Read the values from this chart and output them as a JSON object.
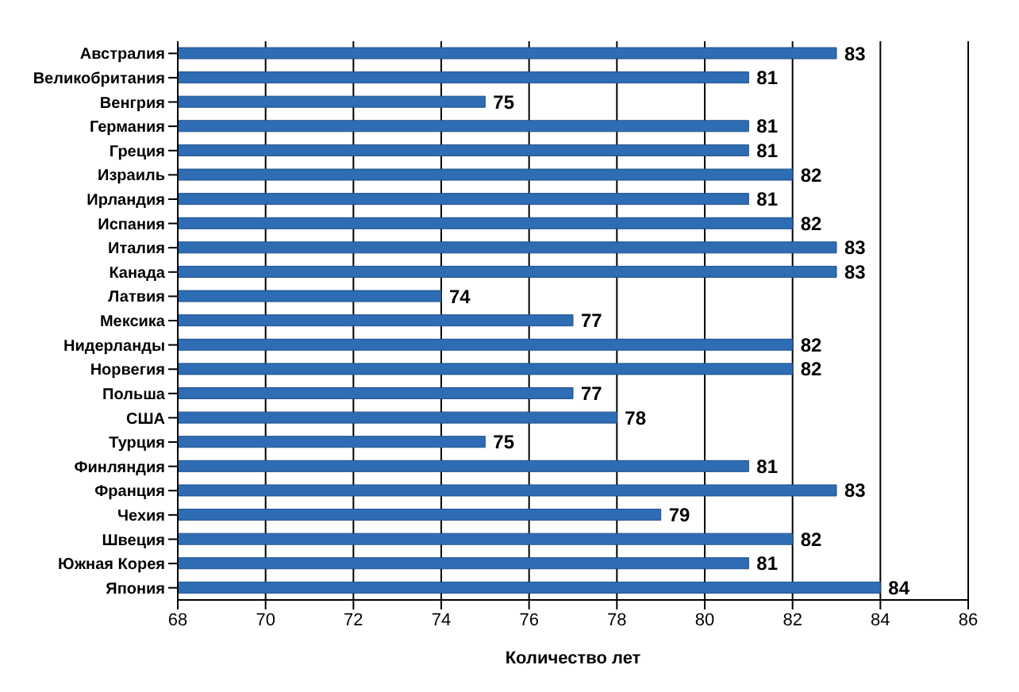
{
  "chart_data": {
    "type": "bar",
    "orientation": "horizontal",
    "xlabel": "Количество лет",
    "categories": [
      "Австралия",
      "Великобритания",
      "Венгрия",
      "Германия",
      "Греция",
      "Израиль",
      "Ирландия",
      "Испания",
      "Италия",
      "Канада",
      "Латвия",
      "Мексика",
      "Нидерланды",
      "Норвегия",
      "Польша",
      "США",
      "Турция",
      "Финляндия",
      "Франция",
      "Чехия",
      "Швеция",
      "Южная Корея",
      "Япония"
    ],
    "values": [
      83,
      81,
      75,
      81,
      81,
      82,
      81,
      82,
      83,
      83,
      74,
      77,
      82,
      82,
      77,
      78,
      75,
      81,
      83,
      79,
      82,
      81,
      84
    ],
    "color": "#2e6db4",
    "xlim": [
      68,
      86
    ],
    "xticks": [
      68,
      70,
      72,
      74,
      76,
      78,
      80,
      82,
      84,
      86
    ],
    "grid": "x",
    "data_labels": true
  }
}
